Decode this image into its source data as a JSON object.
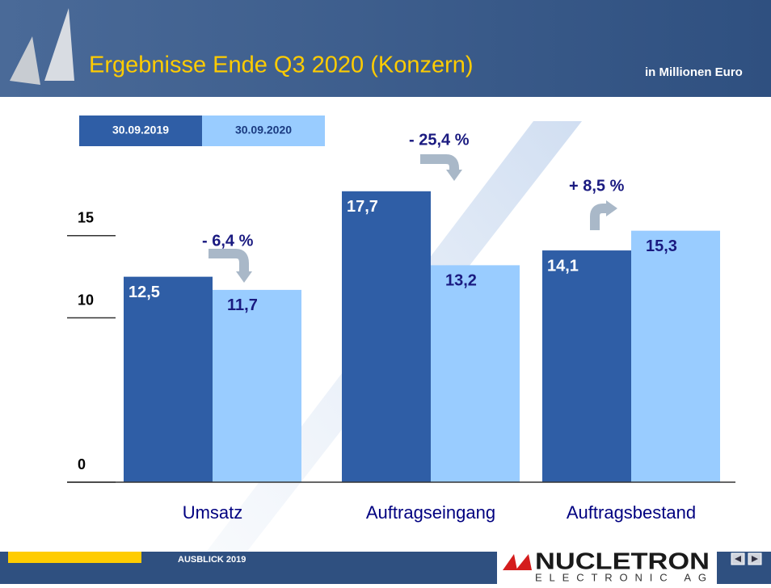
{
  "chart_data": {
    "type": "bar",
    "title": "Ergebnisse Ende Q3 2020 (Konzern)",
    "subtitle": "in Millionen Euro",
    "categories": [
      "Umsatz",
      "Auftragseingang",
      "Auftragsbestand"
    ],
    "series": [
      {
        "name": "30.09.2019",
        "color": "#2f5ea6",
        "values": [
          12.5,
          17.7,
          14.1
        ],
        "value_labels": [
          "12,5",
          "17,7",
          "14,1"
        ]
      },
      {
        "name": "30.09.2020",
        "color": "#99ccff",
        "values": [
          11.7,
          13.2,
          15.3
        ],
        "value_labels": [
          "11,7",
          "13,2",
          "15,3"
        ]
      }
    ],
    "annotations": [
      "- 6,4 %",
      "- 25,4 %",
      "+ 8,5 %"
    ],
    "ylim": [
      0,
      20
    ],
    "yticks": [
      0,
      10,
      15
    ]
  },
  "footer": {
    "section": "AUSBLICK  2019",
    "logo": "NUCLETRON",
    "logo_sub": "ELECTRONIC AG"
  }
}
